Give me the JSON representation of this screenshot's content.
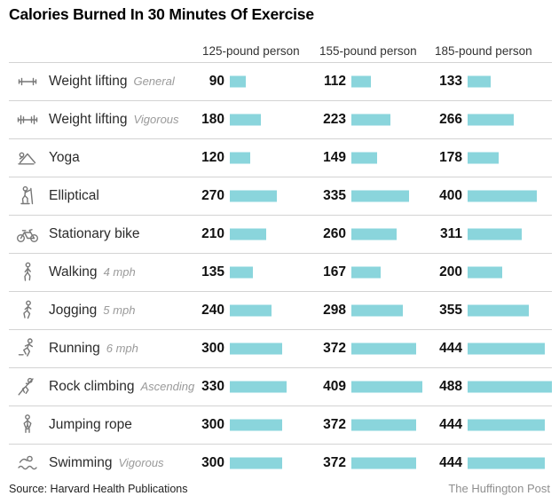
{
  "title": "Calories Burned In 30 Minutes Of Exercise",
  "columns": [
    "125-pound person",
    "155-pound person",
    "185-pound person"
  ],
  "bar_color": "#8ad5dc",
  "bar_scale": 0.195,
  "table": {
    "rows": [
      {
        "icon": "barbell-light-icon",
        "label": "Weight lifting",
        "detail": "General",
        "values": [
          90,
          112,
          133
        ]
      },
      {
        "icon": "barbell-heavy-icon",
        "label": "Weight lifting",
        "detail": "Vigorous",
        "values": [
          180,
          223,
          266
        ]
      },
      {
        "icon": "yoga-icon",
        "label": "Yoga",
        "detail": "",
        "values": [
          120,
          149,
          178
        ]
      },
      {
        "icon": "elliptical-icon",
        "label": "Elliptical",
        "detail": "",
        "values": [
          270,
          335,
          400
        ]
      },
      {
        "icon": "stationary-bike-icon",
        "label": "Stationary bike",
        "detail": "",
        "values": [
          210,
          260,
          311
        ]
      },
      {
        "icon": "walking-icon",
        "label": "Walking",
        "detail": "4 mph",
        "values": [
          135,
          167,
          200
        ]
      },
      {
        "icon": "jogging-icon",
        "label": "Jogging",
        "detail": "5 mph",
        "values": [
          240,
          298,
          355
        ]
      },
      {
        "icon": "running-icon",
        "label": "Running",
        "detail": "6 mph",
        "values": [
          300,
          372,
          444
        ]
      },
      {
        "icon": "rock-climbing-icon",
        "label": "Rock climbing",
        "detail": "Ascending",
        "values": [
          330,
          409,
          488
        ]
      },
      {
        "icon": "jumping-rope-icon",
        "label": "Jumping rope",
        "detail": "",
        "values": [
          300,
          372,
          444
        ]
      },
      {
        "icon": "swimming-icon",
        "label": "Swimming",
        "detail": "Vigorous",
        "values": [
          300,
          372,
          444
        ]
      }
    ]
  },
  "footer": {
    "source": "Source: Harvard Health Publications",
    "credit": "The Huffington Post"
  },
  "chart_data": {
    "type": "bar",
    "title": "Calories Burned In 30 Minutes Of Exercise",
    "categories": [
      "Weight lifting (General)",
      "Weight lifting (Vigorous)",
      "Yoga",
      "Elliptical",
      "Stationary bike",
      "Walking (4 mph)",
      "Jogging (5 mph)",
      "Running (6 mph)",
      "Rock climbing (Ascending)",
      "Jumping rope",
      "Swimming (Vigorous)"
    ],
    "series": [
      {
        "name": "125-pound person",
        "values": [
          90,
          180,
          120,
          270,
          210,
          135,
          240,
          300,
          330,
          300,
          300
        ]
      },
      {
        "name": "155-pound person",
        "values": [
          112,
          223,
          149,
          335,
          260,
          167,
          298,
          372,
          409,
          372,
          372
        ]
      },
      {
        "name": "185-pound person",
        "values": [
          133,
          266,
          178,
          400,
          311,
          200,
          355,
          444,
          488,
          444,
          444
        ]
      }
    ],
    "xlabel": "Calories burned in 30 minutes",
    "ylabel": "",
    "xlim": [
      0,
      500
    ],
    "grid": false,
    "legend_position": "top",
    "orientation": "horizontal",
    "source": "Harvard Health Publications",
    "credit": "The Huffington Post"
  }
}
